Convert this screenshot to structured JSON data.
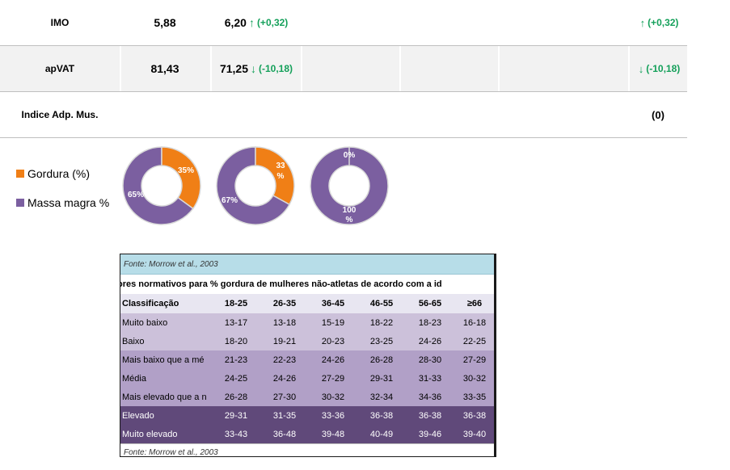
{
  "metrics": {
    "rows": [
      {
        "name": "IMO",
        "v1": "5,88",
        "v2": "6,20",
        "v2_arrow": "↑",
        "v2_delta": "(+0,32)",
        "diff_arrow": "↑",
        "diff": "(+0,32)"
      },
      {
        "name": "apVAT",
        "v1": "81,43",
        "v2": "71,25",
        "v2_arrow": "↓",
        "v2_delta": "(-10,18)",
        "diff_arrow": "↓",
        "diff": "(-10,18)"
      },
      {
        "name": "Indice Adp. Mus.",
        "diff": "(0)"
      }
    ]
  },
  "legend": {
    "fat": {
      "label": "Gordura (%)",
      "color": "#f07f16"
    },
    "lean": {
      "label": "Massa magra %",
      "color": "#7b5fa0"
    }
  },
  "donuts": [
    {
      "fat": 35,
      "lean": 65,
      "fat_label": "35%",
      "lean_label": "65%"
    },
    {
      "fat": 33,
      "lean": 67,
      "fat_label_l1": "33",
      "fat_label_l2": "%",
      "lean_label": "67%"
    },
    {
      "fat": 0,
      "lean": 100,
      "fat_label": "0%",
      "lean_label_l1": "100",
      "lean_label_l2": "%"
    }
  ],
  "reference": {
    "source": "Fonte: Morrow et al., 2003",
    "title": "ores normativos para % gordura de mulheres não-atletas de acordo com a id",
    "headers": [
      "Classificação",
      "18-25",
      "26-35",
      "36-45",
      "46-55",
      "56-65",
      "≥66"
    ],
    "rows": [
      {
        "label": "Muito baixo",
        "values": [
          "13-17",
          "13-18",
          "15-19",
          "18-22",
          "18-23",
          "16-18"
        ]
      },
      {
        "label": "Baixo",
        "values": [
          "18-20",
          "19-21",
          "20-23",
          "23-25",
          "24-26",
          "22-25"
        ]
      },
      {
        "label": "Mais baixo que a mé",
        "values": [
          "21-23",
          "22-23",
          "24-26",
          "26-28",
          "28-30",
          "27-29"
        ]
      },
      {
        "label": "Média",
        "values": [
          "24-25",
          "24-26",
          "27-29",
          "29-31",
          "31-33",
          "30-32"
        ]
      },
      {
        "label": "Mais elevado que a n",
        "values": [
          "26-28",
          "27-30",
          "30-32",
          "32-34",
          "34-36",
          "33-35"
        ]
      },
      {
        "label": "Elevado",
        "values": [
          "29-31",
          "31-35",
          "33-36",
          "36-38",
          "36-38",
          "36-38"
        ]
      },
      {
        "label": "Muito elevado",
        "values": [
          "33-43",
          "36-48",
          "39-48",
          "40-49",
          "39-46",
          "39-40"
        ]
      }
    ],
    "footer": "Fonte: Morrow et al., 2003"
  }
}
